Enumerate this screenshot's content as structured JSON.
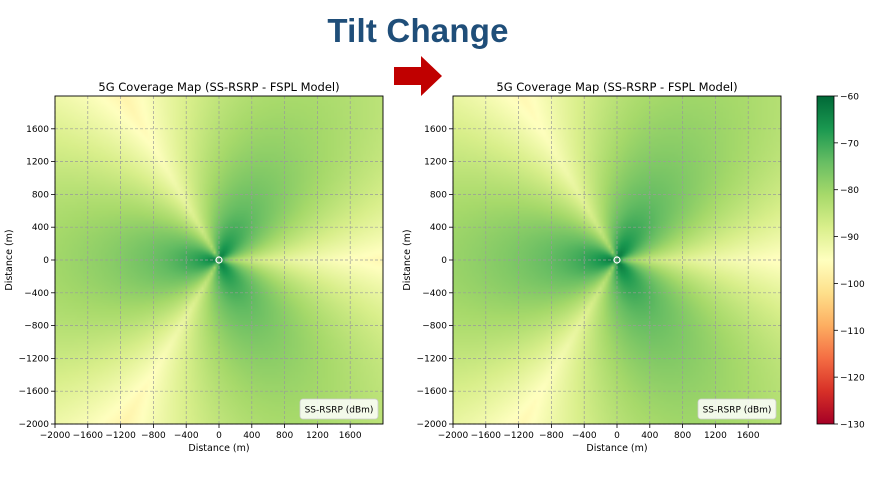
{
  "page": {
    "title": "Tilt Change"
  },
  "chart_data": [
    {
      "type": "heatmap",
      "title": "5G Coverage Map (SS-RSRP - FSPL Model)",
      "xlabel": "Distance (m)",
      "ylabel": "Distance (m)",
      "xlim": [
        -2000,
        2000
      ],
      "ylim": [
        -2000,
        2000
      ],
      "xticks": [
        -2000,
        -1600,
        -1200,
        -800,
        -400,
        0,
        400,
        800,
        1200,
        1600
      ],
      "yticks": [
        -2000,
        -1600,
        -1200,
        -800,
        -400,
        0,
        400,
        800,
        1200,
        1600
      ],
      "grid": true,
      "legend": {
        "label": "SS-RSRP (dBm)",
        "placement": "bottom-right"
      },
      "colormap": "RdYlGn",
      "site": [
        0,
        0
      ],
      "beams": [
        {
          "azimuth_deg": 60,
          "peak_dBm": -61
        },
        {
          "azimuth_deg": 180,
          "peak_dBm": -61
        },
        {
          "azimuth_deg": 300,
          "peak_dBm": -61
        }
      ],
      "rsrp_range": [
        -102,
        -61
      ]
    },
    {
      "type": "heatmap",
      "title": "5G Coverage Map (SS-RSRP - FSPL Model)",
      "xlabel": "Distance (m)",
      "ylabel": "Distance (m)",
      "xlim": [
        -2000,
        2000
      ],
      "ylim": [
        -2000,
        2000
      ],
      "xticks": [
        -2000,
        -1600,
        -1200,
        -800,
        -400,
        0,
        400,
        800,
        1200,
        1600
      ],
      "yticks": [
        -2000,
        -1600,
        -1200,
        -800,
        -400,
        0,
        400,
        800,
        1200,
        1600
      ],
      "grid": true,
      "legend": {
        "label": "SS-RSRP (dBm)",
        "placement": "bottom-right"
      },
      "colormap": "RdYlGn",
      "site": [
        0,
        0
      ],
      "beams": [
        {
          "azimuth_deg": 60,
          "peak_dBm": -60
        },
        {
          "azimuth_deg": 180,
          "peak_dBm": -60
        },
        {
          "azimuth_deg": 300,
          "peak_dBm": -60
        }
      ],
      "rsrp_range": [
        -102,
        -60
      ]
    }
  ],
  "colorbar": {
    "range": [
      -130,
      -60
    ],
    "ticks": [
      -60,
      -70,
      -80,
      -90,
      -100,
      -110,
      -120,
      -130
    ]
  },
  "colors": {
    "headline": "#1f4e79",
    "arrow": "#c00000",
    "grid": "#9a9a9a"
  }
}
